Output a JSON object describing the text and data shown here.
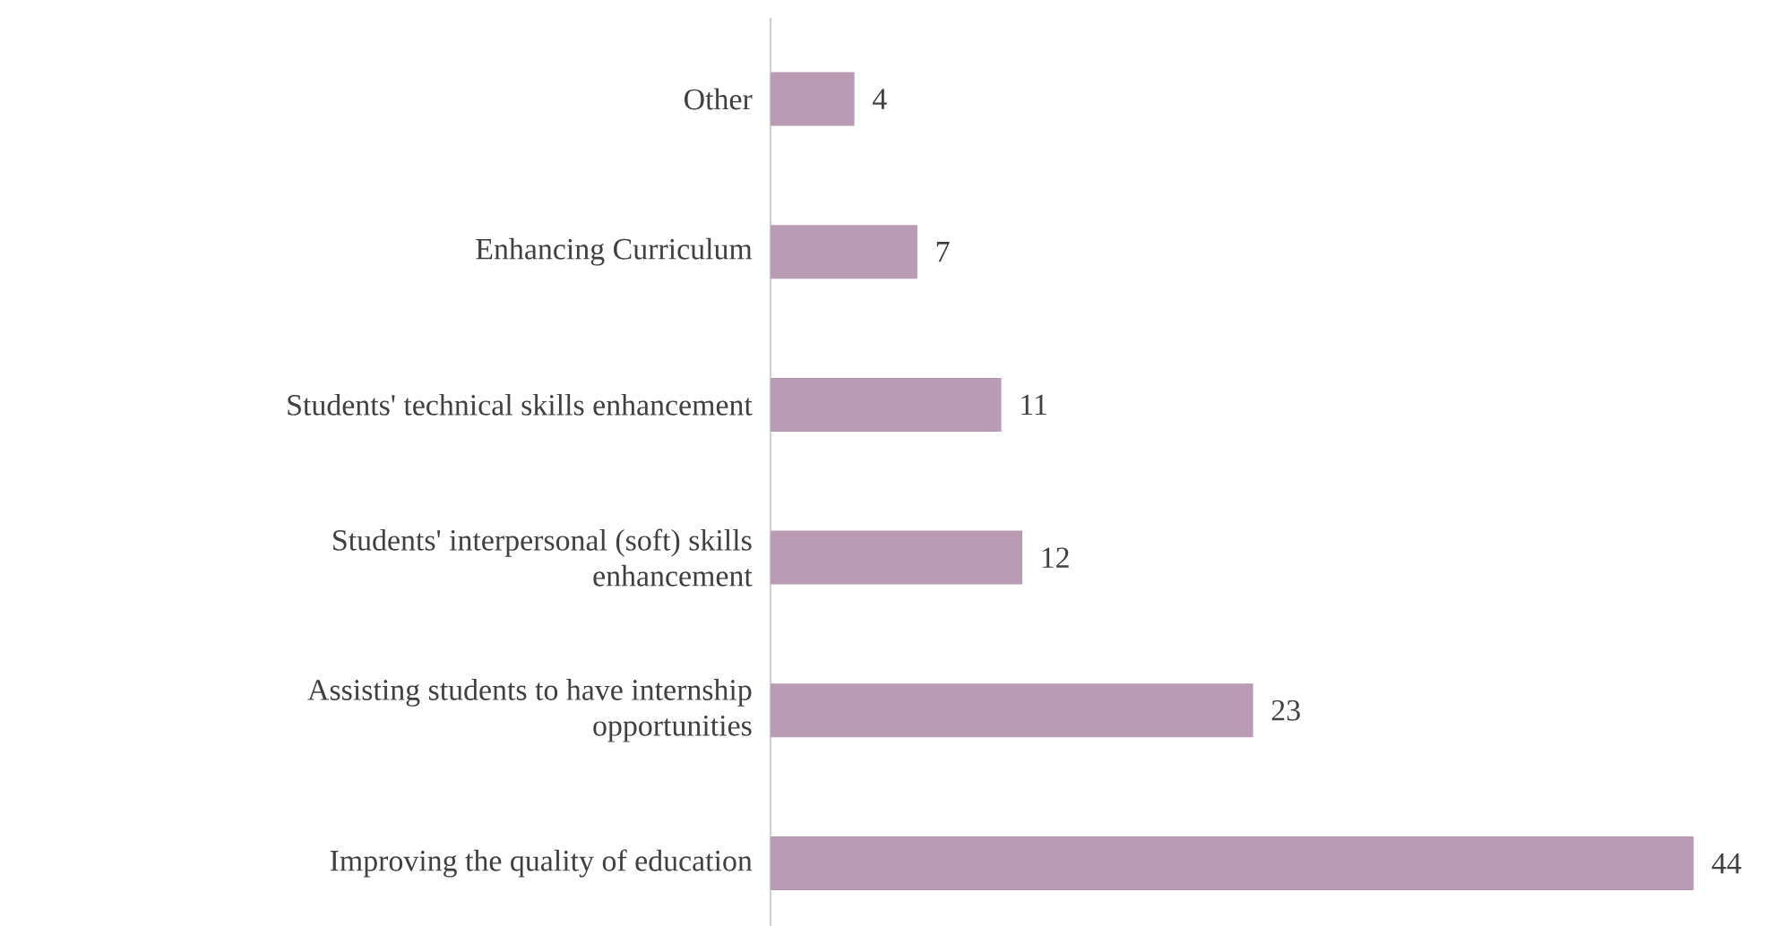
{
  "chart_data": {
    "type": "bar",
    "orientation": "horizontal",
    "categories": [
      "Other",
      "Enhancing Curriculum",
      "Students' technical skills enhancement",
      "Students' interpersonal (soft) skills enhancement",
      "Assisting students to have internship opportunities",
      "Improving the quality of education"
    ],
    "values": [
      4,
      7,
      11,
      12,
      23,
      44
    ],
    "color": "#b99cb4",
    "data_labels": true
  }
}
